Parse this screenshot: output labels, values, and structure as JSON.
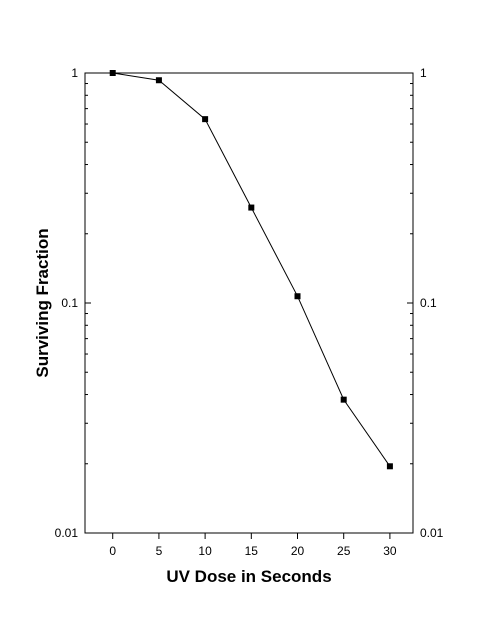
{
  "chart_data": {
    "type": "line",
    "title": "",
    "xlabel": "UV Dose in Seconds",
    "ylabel": "Surviving Fraction",
    "xlim": [
      -3,
      32.5
    ],
    "ylim": [
      0.01,
      1
    ],
    "y_scale": "log",
    "grid": false,
    "right_axis_mirrored": true,
    "x_ticks": [
      0,
      5,
      10,
      15,
      20,
      25,
      30
    ],
    "x_tick_labels": [
      "0",
      "5",
      "10",
      "15",
      "20",
      "25",
      "30"
    ],
    "y_ticks": [
      0.01,
      0.1,
      1
    ],
    "y_tick_labels": [
      "0.01",
      "0.1",
      "1"
    ],
    "series": [
      {
        "x": [
          0,
          5,
          10,
          15,
          20,
          25,
          30
        ],
        "y": [
          1.0,
          0.93,
          0.63,
          0.26,
          0.107,
          0.038,
          0.0195
        ],
        "color": "#000000",
        "marker": "square"
      }
    ]
  }
}
